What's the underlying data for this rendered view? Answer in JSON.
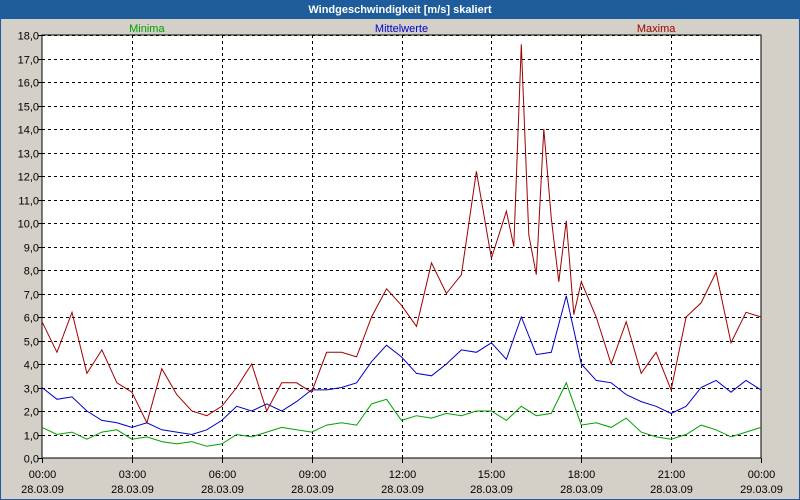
{
  "window": {
    "title": "Windgeschwindigkeit [m/s] skaliert"
  },
  "chart_data": {
    "type": "line",
    "title": "Windgeschwindigkeit [m/s] skaliert",
    "ylim": [
      0,
      18
    ],
    "yticks": [
      0,
      1,
      2,
      3,
      4,
      5,
      6,
      7,
      8,
      9,
      10,
      11,
      12,
      13,
      14,
      15,
      16,
      17,
      18
    ],
    "ytick_labels": [
      "0,0",
      "1,0",
      "2,0",
      "3,0",
      "4,0",
      "5,0",
      "6,0",
      "7,0",
      "8,0",
      "9,0",
      "10,0",
      "11,0",
      "12,0",
      "13,0",
      "14,0",
      "15,0",
      "16,0",
      "17,0",
      "18,0"
    ],
    "xlim": [
      0,
      24
    ],
    "xticks": [
      0,
      3,
      6,
      9,
      12,
      15,
      18,
      21,
      24
    ],
    "xtick_time": [
      "00:00",
      "03:00",
      "06:00",
      "09:00",
      "12:00",
      "15:00",
      "18:00",
      "21:00",
      "00:00"
    ],
    "xtick_date": [
      "28.03.09",
      "28.03.09",
      "28.03.09",
      "28.03.09",
      "28.03.09",
      "28.03.09",
      "28.03.09",
      "28.03.09",
      "29.03.09"
    ],
    "grid": true,
    "series": [
      {
        "name": "Minima",
        "color": "#00a000",
        "x": [
          0,
          0.5,
          1,
          1.5,
          2,
          2.5,
          3,
          3.5,
          4,
          4.5,
          5,
          5.5,
          6,
          6.5,
          7,
          7.5,
          8,
          8.5,
          9,
          9.5,
          10,
          10.5,
          11,
          11.5,
          12,
          12.5,
          13,
          13.5,
          14,
          14.5,
          15,
          15.5,
          16,
          16.5,
          17,
          17.5,
          18,
          18.5,
          19,
          19.5,
          20,
          20.5,
          21,
          21.5,
          22,
          22.5,
          23,
          23.5,
          24
        ],
        "values": [
          1.3,
          1.0,
          1.1,
          0.8,
          1.1,
          1.2,
          0.8,
          0.9,
          0.7,
          0.6,
          0.7,
          0.5,
          0.6,
          1.0,
          0.9,
          1.1,
          1.3,
          1.2,
          1.1,
          1.4,
          1.5,
          1.4,
          2.3,
          2.5,
          1.6,
          1.8,
          1.7,
          1.9,
          1.8,
          2.0,
          2.0,
          1.6,
          2.2,
          1.8,
          1.9,
          3.2,
          1.4,
          1.5,
          1.3,
          1.7,
          1.1,
          0.9,
          0.8,
          1.0,
          1.4,
          1.2,
          0.9,
          1.1,
          1.3
        ]
      },
      {
        "name": "Mittelwerte",
        "color": "#0000c8",
        "x": [
          0,
          0.5,
          1,
          1.5,
          2,
          2.5,
          3,
          3.5,
          4,
          4.5,
          5,
          5.5,
          6,
          6.5,
          7,
          7.5,
          8,
          8.5,
          9,
          9.5,
          10,
          10.5,
          11,
          11.5,
          12,
          12.5,
          13,
          13.5,
          14,
          14.5,
          15,
          15.5,
          16,
          16.5,
          17,
          17.5,
          18,
          18.5,
          19,
          19.5,
          20,
          20.5,
          21,
          21.5,
          22,
          22.5,
          23,
          23.5,
          24
        ],
        "values": [
          3.0,
          2.5,
          2.6,
          2.0,
          1.6,
          1.5,
          1.3,
          1.5,
          1.2,
          1.1,
          1.0,
          1.2,
          1.6,
          2.2,
          2.0,
          2.3,
          2.0,
          2.4,
          2.9,
          2.9,
          3.0,
          3.2,
          4.1,
          4.8,
          4.3,
          3.6,
          3.5,
          4.0,
          4.6,
          4.5,
          4.9,
          4.2,
          6.0,
          4.4,
          4.5,
          6.9,
          4.0,
          3.3,
          3.2,
          2.7,
          2.4,
          2.2,
          1.9,
          2.2,
          3.0,
          3.3,
          2.8,
          3.3,
          2.9
        ]
      },
      {
        "name": "Maxima",
        "color": "#a00000",
        "x": [
          0,
          0.5,
          1,
          1.5,
          2,
          2.5,
          3,
          3.5,
          4,
          4.5,
          5,
          5.5,
          6,
          6.5,
          7,
          7.5,
          8,
          8.5,
          9,
          9.5,
          10,
          10.5,
          11,
          11.5,
          12,
          12.5,
          13,
          13.5,
          14,
          14.5,
          15,
          15.5,
          15.75,
          16,
          16.25,
          16.5,
          16.75,
          17,
          17.25,
          17.5,
          17.75,
          18,
          18.5,
          19,
          19.5,
          20,
          20.5,
          21,
          21.5,
          22,
          22.5,
          23,
          23.5,
          24
        ],
        "values": [
          5.8,
          4.5,
          6.2,
          3.6,
          4.6,
          3.2,
          2.8,
          1.5,
          3.8,
          2.7,
          2.0,
          1.8,
          2.2,
          3.0,
          4.0,
          2.0,
          3.2,
          3.2,
          2.8,
          4.5,
          4.5,
          4.3,
          6.0,
          7.2,
          6.5,
          5.6,
          8.3,
          7.0,
          7.8,
          12.2,
          8.5,
          10.5,
          9.0,
          17.6,
          9.5,
          7.8,
          14.0,
          10.2,
          7.5,
          10.1,
          6.1,
          7.5,
          6.0,
          4.0,
          5.8,
          3.6,
          4.5,
          2.9,
          6.0,
          6.6,
          7.9,
          4.9,
          6.2,
          6.0
        ]
      }
    ]
  }
}
